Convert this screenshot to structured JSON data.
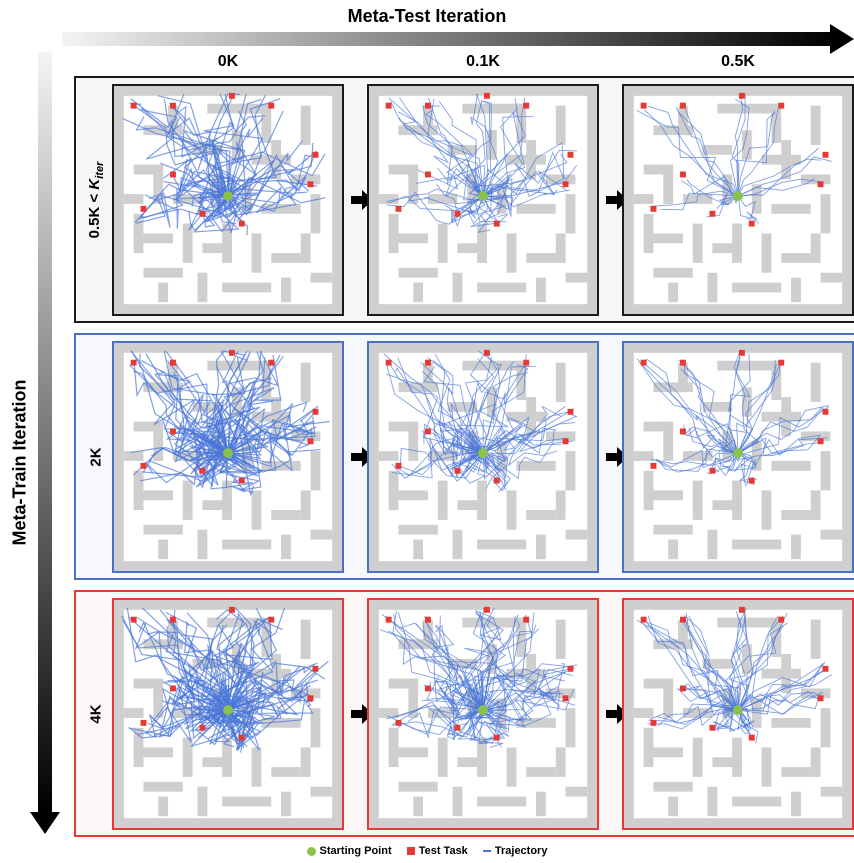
{
  "title_top": "Meta-Test Iteration",
  "title_left": "Meta-Train Iteration",
  "columns": [
    "0K",
    "0.1K",
    "0.5K"
  ],
  "rows": [
    {
      "label": "0.5K < K_iter",
      "border_color": "#1a1a1a"
    },
    {
      "label": "2K",
      "border_color": "#4a72c4"
    },
    {
      "label": "4K",
      "border_color": "#e53935"
    }
  ],
  "legend": [
    {
      "label": "Starting Point",
      "marker": "green-dot",
      "color": "#8bc34a"
    },
    {
      "label": "Test Task",
      "marker": "red-square",
      "color": "#e53935"
    },
    {
      "label": "Trajectory",
      "marker": "blue-line",
      "color": "#4a76d8"
    }
  ],
  "colors": {
    "trajectory": "#4a76d8",
    "start": "#8bc34a",
    "task": "#e53935",
    "wall": "#cfcfcf"
  }
}
